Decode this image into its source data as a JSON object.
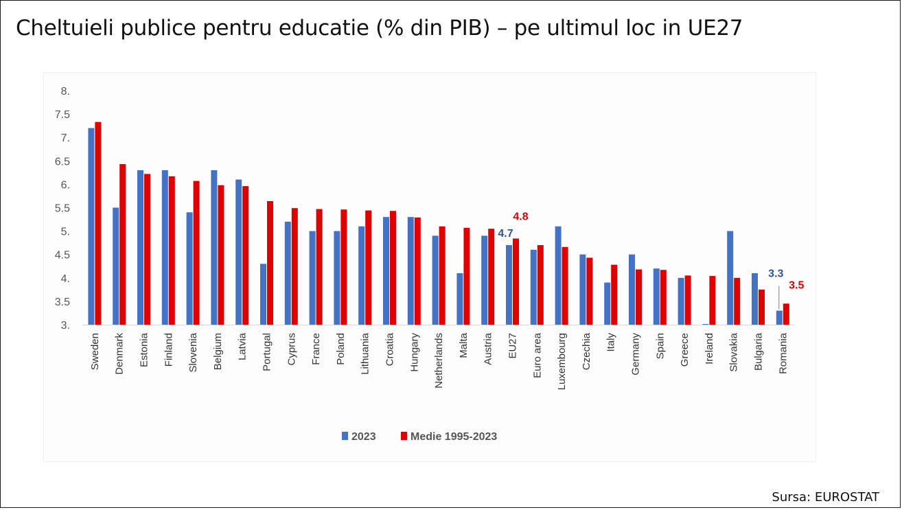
{
  "page": {
    "title": "Cheltuieli publice pentru educatie (% din PIB) – pe ultimul loc in UE27",
    "source": "Sursa: EUROSTAT"
  },
  "colors": {
    "series_2023": "#4472C4",
    "series_avg": "#E00000",
    "ann_blue": "#2F5597",
    "ann_red": "#E00000"
  },
  "chart_data": {
    "type": "bar",
    "title": "Cheltuieli publice pentru educatie (% din PIB) – pe ultimul loc in UE27",
    "xlabel": "",
    "ylabel": "",
    "ylim": [
      3,
      8
    ],
    "yticks": [
      "3.",
      "3.5",
      "4.",
      "4.5",
      "5.",
      "5.5",
      "6.",
      "6.5",
      "7.",
      "7.5",
      "8."
    ],
    "grid": false,
    "legend_position": "bottom",
    "categories": [
      "Sweden",
      "Denmark",
      "Estonia",
      "Finland",
      "Slovenia",
      "Belgium",
      "Latvia",
      "Portugal",
      "Cyprus",
      "France",
      "Poland",
      "Lithuania",
      "Croatia",
      "Hungary",
      "Netherlands",
      "Malta",
      "Austria",
      "EU27",
      "Euro area",
      "Luxembourg",
      "Czechia",
      "Italy",
      "Germany",
      "Spain",
      "Greece",
      "Ireland",
      "Slovakia",
      "Bulgaria",
      "Romania"
    ],
    "series": [
      {
        "name": "2023",
        "color": "#4472C4",
        "values": [
          7.2,
          5.5,
          6.3,
          6.3,
          5.4,
          6.3,
          6.1,
          4.3,
          5.2,
          5.0,
          5.0,
          5.1,
          5.3,
          5.3,
          4.9,
          4.1,
          4.9,
          4.7,
          4.6,
          5.1,
          4.5,
          3.9,
          4.5,
          4.2,
          4.0,
          3.0,
          5.0,
          4.1,
          3.3
        ]
      },
      {
        "name": "Medie 1995-2023",
        "color": "#E00000",
        "values": [
          7.33,
          6.43,
          6.22,
          6.17,
          6.07,
          5.98,
          5.96,
          5.64,
          5.49,
          5.47,
          5.46,
          5.44,
          5.43,
          5.29,
          5.1,
          5.07,
          5.05,
          4.84,
          4.7,
          4.66,
          4.43,
          4.28,
          4.18,
          4.17,
          4.05,
          4.04,
          4.0,
          3.75,
          3.45
        ]
      }
    ],
    "annotations": [
      {
        "text": "4.7",
        "category": "EU27",
        "color": "#2F5597"
      },
      {
        "text": "4.8",
        "category": "EU27",
        "color": "#E00000"
      },
      {
        "text": "3.3",
        "category": "Romania",
        "color": "#2F5597"
      },
      {
        "text": "3.5",
        "category": "Romania",
        "color": "#E00000"
      }
    ]
  }
}
